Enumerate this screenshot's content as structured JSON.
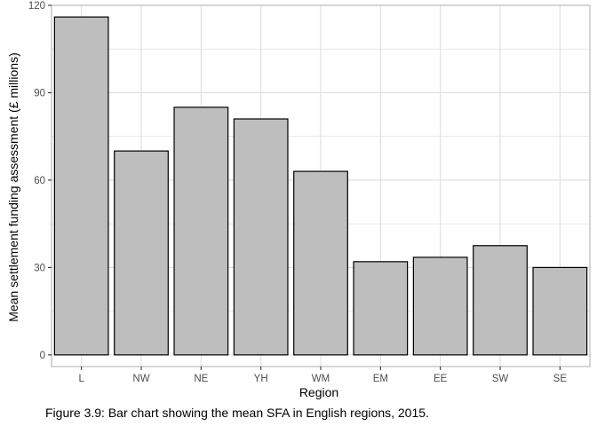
{
  "chart_data": {
    "type": "bar",
    "categories": [
      "L",
      "NW",
      "NE",
      "YH",
      "WM",
      "EM",
      "EE",
      "SW",
      "SE"
    ],
    "values": [
      116,
      70,
      85,
      81,
      63,
      32,
      33.5,
      37.5,
      30
    ],
    "xlabel": "Region",
    "ylabel": "Mean settlement funding assessment (£ millions)",
    "ylim": [
      -4,
      120
    ],
    "yticks": [
      0,
      30,
      60,
      90,
      120
    ],
    "grid": true,
    "bar_fill": "#bebebe",
    "bar_stroke": "#000000",
    "grid_color": "#dedede",
    "panel_border_color": "#b3b3b3",
    "tick_label_color": "#4d4d4d"
  },
  "caption": "Figure 3.9: Bar chart showing the mean SFA in English regions, 2015."
}
